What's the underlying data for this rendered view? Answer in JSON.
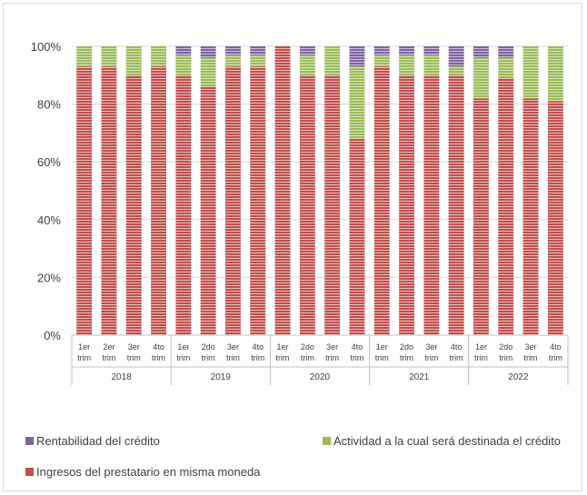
{
  "chart_data": {
    "type": "bar",
    "stacked": true,
    "percent_stacked": true,
    "ylim": [
      0,
      100
    ],
    "yticks": [
      "0%",
      "20%",
      "40%",
      "60%",
      "80%",
      "100%"
    ],
    "grid": true,
    "categories": [
      "1er trim",
      "2er trim",
      "3er trim",
      "4to trim",
      "1er trim",
      "2do trim",
      "3er trim",
      "4to trim",
      "1er trim",
      "2do trim",
      "3er trim",
      "4to trim",
      "1er trim",
      "2do trim",
      "3er trim",
      "4to trim",
      "1er trim",
      "2do trim",
      "3er trim",
      "4to trim"
    ],
    "groups": [
      {
        "label": "2018",
        "count": 4
      },
      {
        "label": "2019",
        "count": 4
      },
      {
        "label": "2020",
        "count": 4
      },
      {
        "label": "2021",
        "count": 4
      },
      {
        "label": "2022",
        "count": 4
      }
    ],
    "series": [
      {
        "name": "Ingresos del prestatario en misma moneda",
        "color": "#c0504d",
        "values": [
          93,
          93,
          90,
          93,
          90,
          86,
          93,
          93,
          100,
          90,
          90,
          68,
          93,
          90,
          90,
          90,
          82,
          89,
          82,
          81
        ]
      },
      {
        "name": "Actividad a la cual será destinada el crédito",
        "color": "#9bbb59",
        "values": [
          7,
          7,
          10,
          7,
          7,
          10,
          4,
          4,
          0,
          7,
          10,
          25,
          4,
          7,
          7,
          3,
          14,
          7,
          18,
          19
        ]
      },
      {
        "name": "Rentabilidad del crédito",
        "color": "#8064a2",
        "values": [
          0,
          0,
          0,
          0,
          3,
          4,
          3,
          3,
          0,
          3,
          0,
          7,
          3,
          3,
          3,
          7,
          4,
          4,
          0,
          0
        ]
      }
    ],
    "legend_position": "bottom"
  },
  "legend": [
    {
      "label": "Rentabilidad del crédito",
      "color": "#8064a2"
    },
    {
      "label": "Actividad a la cual será destinada el crédito",
      "color": "#9bbb59"
    },
    {
      "label": "Ingresos del prestatario en misma moneda",
      "color": "#c0504d"
    }
  ]
}
